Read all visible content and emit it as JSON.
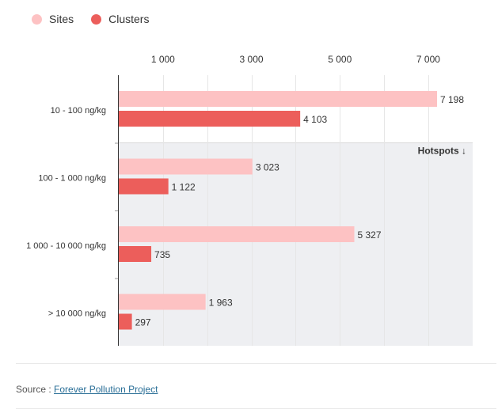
{
  "legend": {
    "items": [
      {
        "label": "Sites",
        "color": "#fdc2c3"
      },
      {
        "label": "Clusters",
        "color": "#ec5e5b"
      }
    ]
  },
  "annotation": {
    "hotspots_label": "Hotspots ↓"
  },
  "source": {
    "prefix": "Source : ",
    "link_text": "Forever Pollution Project"
  },
  "colors": {
    "sites": "#fdc2c3",
    "clusters": "#ec5e5b",
    "hotspot_band": "#eeeff2",
    "grid": "#e6e6e6",
    "axis": "#333333"
  },
  "chart_data": {
    "type": "bar",
    "orientation": "horizontal",
    "categories": [
      "10 - 100 ng/kg",
      "100 - 1 000 ng/kg",
      "1 000 - 10 000 ng/kg",
      "> 10 000 ng/kg"
    ],
    "series": [
      {
        "name": "Sites",
        "values": [
          7198,
          3023,
          5327,
          1963
        ],
        "labels": [
          "7 198",
          "3 023",
          "5 327",
          "1 963"
        ]
      },
      {
        "name": "Clusters",
        "values": [
          4103,
          1122,
          735,
          297
        ],
        "labels": [
          "4 103",
          "1 122",
          "735",
          "297"
        ]
      }
    ],
    "x_ticks": [
      1000,
      3000,
      5000,
      7000
    ],
    "x_tick_labels": [
      "1 000",
      "3 000",
      "5 000",
      "7 000"
    ],
    "xlim": [
      0,
      8000
    ],
    "x_axis_position": "top",
    "grid": true,
    "legend_position": "top-left",
    "highlight_band": {
      "from_category": "100 - 1 000 ng/kg",
      "to_category": "> 10 000 ng/kg",
      "label": "Hotspots ↓"
    }
  }
}
